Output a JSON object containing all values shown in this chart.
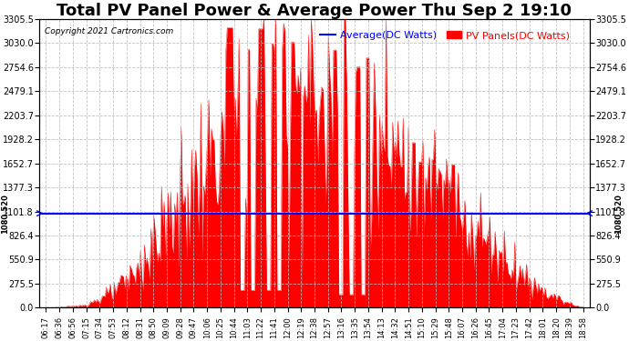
{
  "title": "Total PV Panel Power & Average Power Thu Sep 2 19:10",
  "copyright": "Copyright 2021 Cartronics.com",
  "legend_avg": "Average(DC Watts)",
  "legend_pv": "PV Panels(DC Watts)",
  "avg_value": 1080.52,
  "avg_label": "1080.520",
  "ymin": 0.0,
  "ymax": 3305.5,
  "yticks": [
    0.0,
    275.5,
    550.9,
    826.4,
    1101.8,
    1377.3,
    1652.7,
    1928.2,
    2203.7,
    2479.1,
    2754.6,
    3030.0,
    3305.5
  ],
  "fill_color": "#FF0000",
  "line_color": "#FF0000",
  "avg_line_color": "#0000FF",
  "background_color": "#FFFFFF",
  "grid_color": "#AAAAAA",
  "title_fontsize": 13,
  "tick_fontsize": 7,
  "legend_fontsize": 8,
  "x_labels": [
    "06:17",
    "06:36",
    "06:56",
    "07:15",
    "07:34",
    "07:53",
    "08:12",
    "08:31",
    "08:50",
    "09:09",
    "09:28",
    "09:47",
    "10:06",
    "10:25",
    "10:44",
    "11:03",
    "11:22",
    "11:41",
    "12:00",
    "12:19",
    "12:38",
    "12:57",
    "13:16",
    "13:35",
    "13:54",
    "14:13",
    "14:32",
    "14:51",
    "15:10",
    "15:29",
    "15:48",
    "16:07",
    "16:26",
    "16:45",
    "17:04",
    "17:23",
    "17:42",
    "18:01",
    "18:20",
    "18:39",
    "18:58"
  ]
}
